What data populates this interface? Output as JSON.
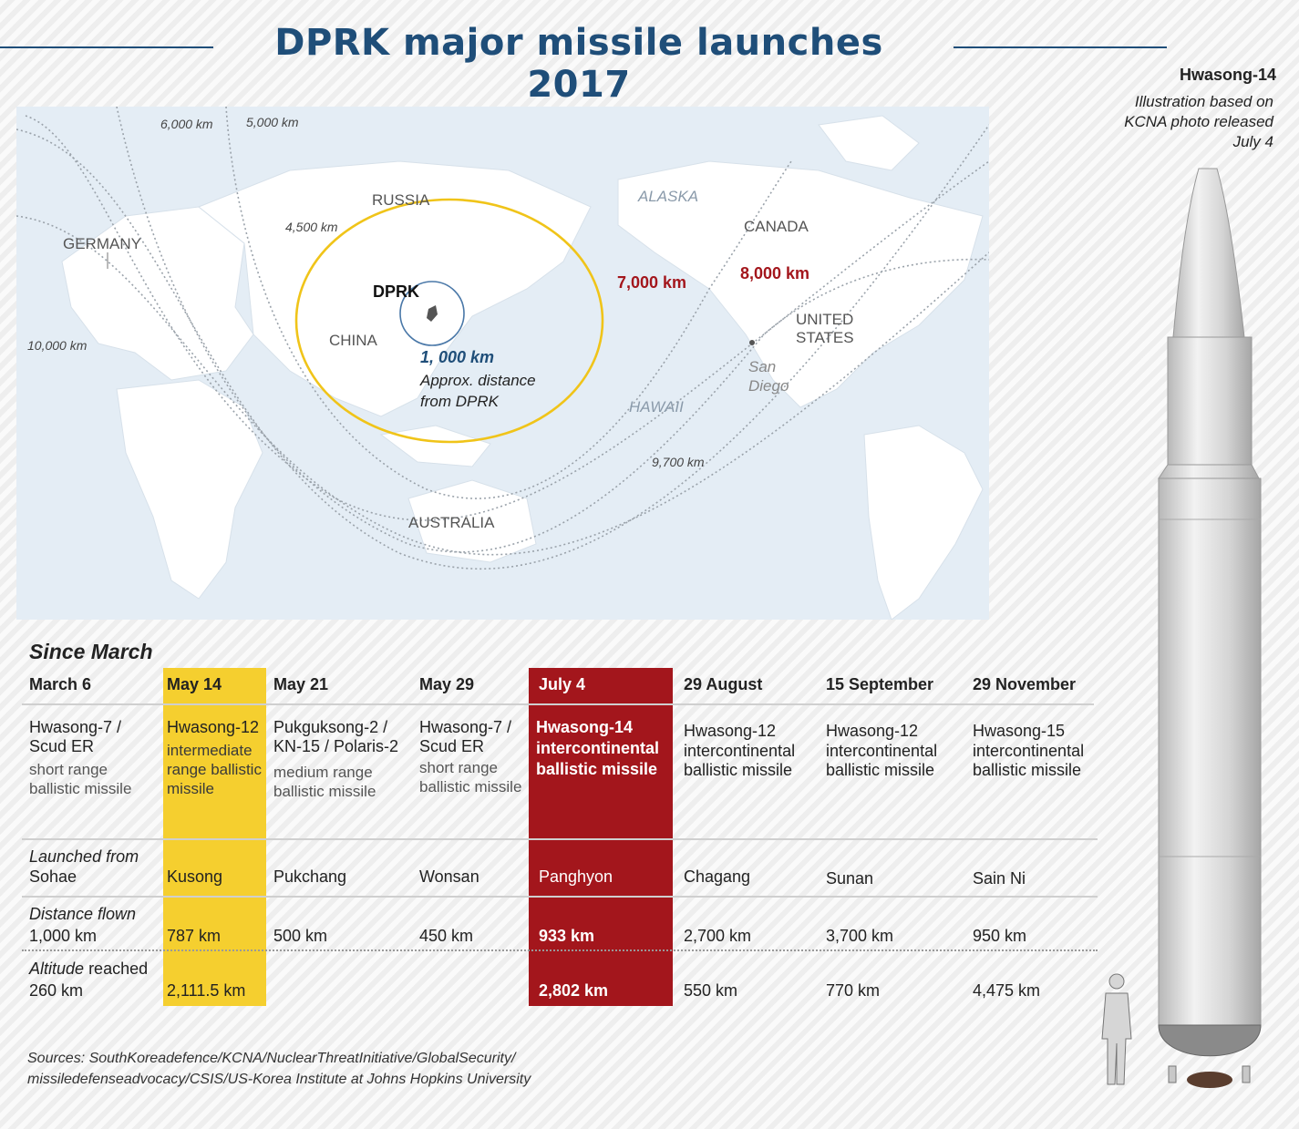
{
  "title": "DPRK major missile launches 2017",
  "map": {
    "countries": [
      "RUSSIA",
      "GERMANY",
      "CHINA",
      "CANADA",
      "UNITED STATES",
      "AUSTRALIA"
    ],
    "regions": [
      "ALASKA",
      "HAWAII"
    ],
    "dprk_label": "DPRK",
    "san_diego": "San Diego",
    "ranges": {
      "r6000": "6,000 km",
      "r5000": "5,000 km",
      "r4500": "4,500 km",
      "r10000": "10,000 km",
      "r9700": "9,700 km",
      "r7000": "7,000 km",
      "r8000": "8,000 km"
    },
    "distance_1000": "1, 000 km",
    "approx_note": "Approx. distance from DPRK"
  },
  "rocket": {
    "title": "Hwasong-14",
    "caption": "Illustration based on KCNA photo released July 4"
  },
  "table": {
    "section_label": "Since March",
    "launched_from_label": "Launched from",
    "distance_label": "Distance flown",
    "altitude_label": "Altitude",
    "altitude_suffix": "reached",
    "columns": [
      {
        "date": "March 6",
        "name": "Hwasong-7 / Scud ER",
        "type": "short range ballistic missile",
        "launched_from": "Sohae",
        "distance": "1,000 km",
        "altitude": "260 km"
      },
      {
        "date": "May 14",
        "name": "Hwasong-12",
        "type": "intermediate range ballistic missile",
        "launched_from": "Kusong",
        "distance": "787 km",
        "altitude": "2,111.5 km"
      },
      {
        "date": "May 21",
        "name": "Pukguksong-2 / KN-15 / Polaris-2",
        "type": "medium range ballistic missile",
        "launched_from": "Pukchang",
        "distance": "500 km",
        "altitude": ""
      },
      {
        "date": "May 29",
        "name": "Hwasong-7 / Scud ER",
        "type": "short range ballistic missile",
        "launched_from": "Wonsan",
        "distance": "450 km",
        "altitude": ""
      },
      {
        "date": "July 4",
        "name": "Hwasong-14",
        "type": "intercontinental ballistic missile",
        "launched_from": "Panghyon",
        "distance": "933 km",
        "altitude": "2,802 km"
      },
      {
        "date": "29 August",
        "name": "Hwasong-12",
        "type": "intercontinental ballistic missile",
        "launched_from": "Chagang",
        "distance": "2,700 km",
        "altitude": "550 km"
      },
      {
        "date": "15 September",
        "name": "Hwasong-12",
        "type": "intercontinental ballistic missile",
        "launched_from": "Sunan",
        "distance": "3,700 km",
        "altitude": "770 km"
      },
      {
        "date": "29 November",
        "name": "Hwasong-15",
        "type": "intercontinental ballistic missile",
        "launched_from": "Sain Ni",
        "distance": "950 km",
        "altitude": "4,475 km"
      }
    ]
  },
  "sources": "Sources: SouthKoreadefence/KCNA/NuclearThreatInitiative/GlobalSecurity/ missiledefenseadvocacy/CSIS/US-Korea Institute at Johns Hopkins University",
  "colors": {
    "title_blue": "#1f4e79",
    "highlight_yellow": "#f5cf2f",
    "highlight_red": "#a3161c",
    "range_ring": "#f0c419",
    "ocean": "#e4edf5"
  }
}
